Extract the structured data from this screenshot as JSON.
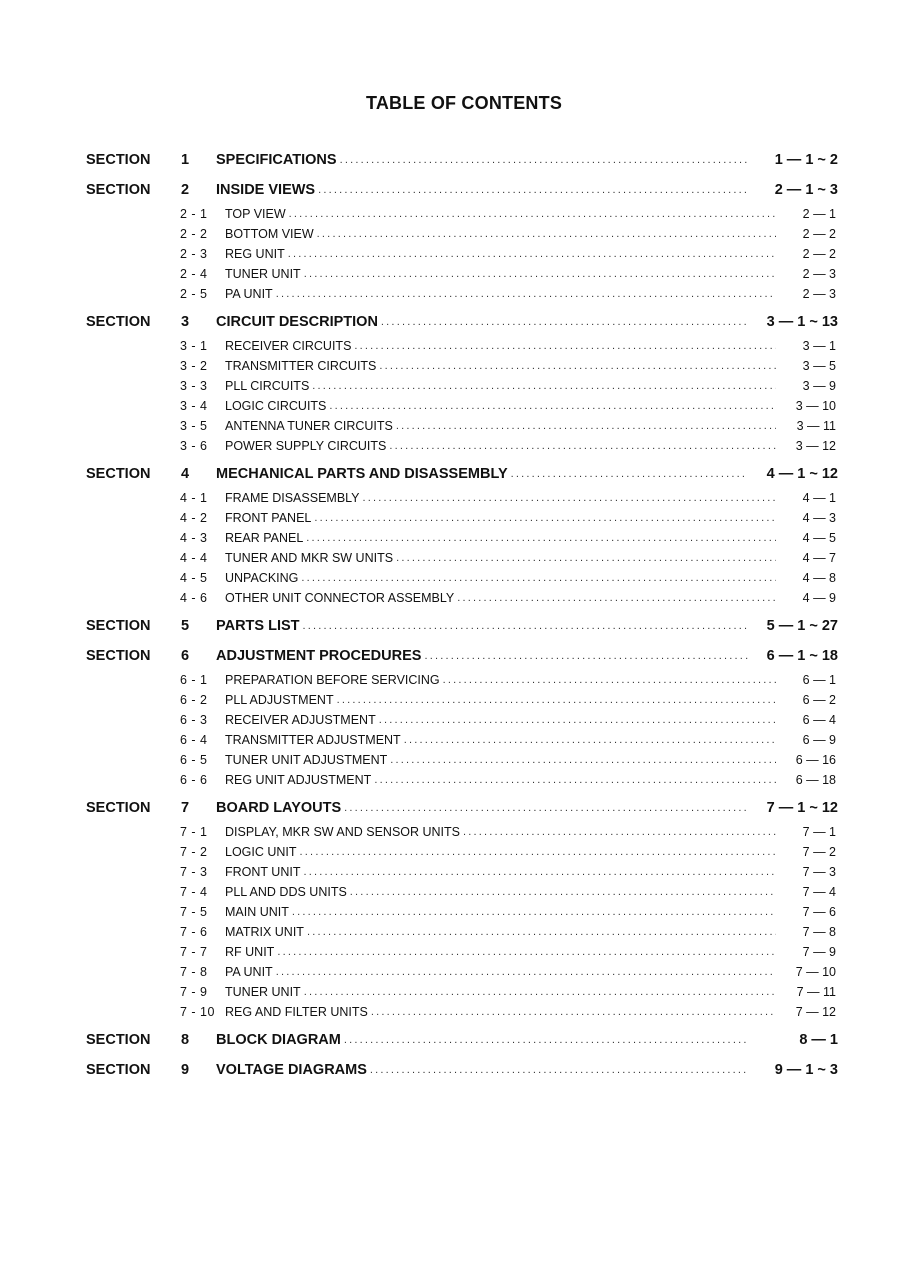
{
  "title": "TABLE OF CONTENTS",
  "section_label": "SECTION",
  "sections": [
    {
      "num": "1",
      "title": "SPECIFICATIONS",
      "pages": "1 — 1 ~ 2",
      "items": []
    },
    {
      "num": "2",
      "title": "INSIDE VIEWS",
      "pages": "2 — 1 ~ 3",
      "items": [
        {
          "num": "2 - 1",
          "title": "TOP VIEW",
          "page": "2 — 1"
        },
        {
          "num": "2 - 2",
          "title": "BOTTOM VIEW",
          "page": "2 — 2"
        },
        {
          "num": "2 - 3",
          "title": "REG UNIT",
          "page": "2 — 2"
        },
        {
          "num": "2 - 4",
          "title": "TUNER UNIT",
          "page": "2 — 3"
        },
        {
          "num": "2 - 5",
          "title": "PA UNIT",
          "page": "2 — 3"
        }
      ]
    },
    {
      "num": "3",
      "title": "CIRCUIT DESCRIPTION",
      "pages": "3 — 1 ~ 13",
      "items": [
        {
          "num": "3 - 1",
          "title": "RECEIVER CIRCUITS",
          "page": "3 — 1"
        },
        {
          "num": "3 - 2",
          "title": "TRANSMITTER CIRCUITS",
          "page": "3 — 5"
        },
        {
          "num": "3 - 3",
          "title": "PLL CIRCUITS",
          "page": "3 — 9"
        },
        {
          "num": "3 - 4",
          "title": "LOGIC CIRCUITS",
          "page": "3 — 10"
        },
        {
          "num": "3 - 5",
          "title": "ANTENNA TUNER CIRCUITS",
          "page": "3 — 11"
        },
        {
          "num": "3 - 6",
          "title": "POWER SUPPLY CIRCUITS",
          "page": "3 — 12"
        }
      ]
    },
    {
      "num": "4",
      "title": "MECHANICAL PARTS AND DISASSEMBLY",
      "pages": "4 — 1 ~ 12",
      "items": [
        {
          "num": "4 - 1",
          "title": "FRAME DISASSEMBLY",
          "page": "4 — 1"
        },
        {
          "num": "4 - 2",
          "title": "FRONT PANEL",
          "page": "4 — 3"
        },
        {
          "num": "4 - 3",
          "title": "REAR PANEL",
          "page": "4 — 5"
        },
        {
          "num": "4 - 4",
          "title": "TUNER AND MKR SW UNITS",
          "page": "4 — 7"
        },
        {
          "num": "4 - 5",
          "title": "UNPACKING",
          "page": "4 — 8"
        },
        {
          "num": "4 - 6",
          "title": "OTHER UNIT CONNECTOR ASSEMBLY",
          "page": "4 — 9"
        }
      ]
    },
    {
      "num": "5",
      "title": "PARTS LIST",
      "pages": "5 — 1 ~ 27",
      "items": []
    },
    {
      "num": "6",
      "title": "ADJUSTMENT PROCEDURES",
      "pages": "6 — 1 ~ 18",
      "items": [
        {
          "num": "6 - 1",
          "title": "PREPARATION BEFORE SERVICING",
          "page": "6 — 1"
        },
        {
          "num": "6 - 2",
          "title": "PLL ADJUSTMENT",
          "page": "6 — 2"
        },
        {
          "num": "6 - 3",
          "title": "RECEIVER ADJUSTMENT",
          "page": "6 — 4"
        },
        {
          "num": "6 - 4",
          "title": "TRANSMITTER ADJUSTMENT",
          "page": "6 — 9"
        },
        {
          "num": "6 - 5",
          "title": "TUNER UNIT ADJUSTMENT",
          "page": "6 — 16"
        },
        {
          "num": "6 - 6",
          "title": "REG UNIT ADJUSTMENT",
          "page": "6 — 18"
        }
      ]
    },
    {
      "num": "7",
      "title": "BOARD LAYOUTS",
      "pages": "7 — 1 ~ 12",
      "items": [
        {
          "num": "7 - 1",
          "title": "DISPLAY, MKR SW AND SENSOR UNITS",
          "page": "7 — 1"
        },
        {
          "num": "7 - 2",
          "title": "LOGIC UNIT",
          "page": "7 — 2"
        },
        {
          "num": "7 - 3",
          "title": "FRONT UNIT",
          "page": "7 — 3"
        },
        {
          "num": "7 - 4",
          "title": "PLL AND DDS UNITS",
          "page": "7 — 4"
        },
        {
          "num": "7 - 5",
          "title": "MAIN UNIT",
          "page": "7 — 6"
        },
        {
          "num": "7 - 6",
          "title": "MATRIX UNIT",
          "page": "7 — 8"
        },
        {
          "num": "7 - 7",
          "title": "RF UNIT",
          "page": "7 — 9"
        },
        {
          "num": "7 - 8",
          "title": "PA UNIT",
          "page": "7 — 10"
        },
        {
          "num": "7 - 9",
          "title": "TUNER UNIT",
          "page": "7 — 11"
        },
        {
          "num": "7 - 10",
          "title": "REG AND FILTER UNITS",
          "page": "7 — 12"
        }
      ]
    },
    {
      "num": "8",
      "title": "BLOCK DIAGRAM",
      "pages": "8 — 1",
      "items": []
    },
    {
      "num": "9",
      "title": "VOLTAGE DIAGRAMS",
      "pages": "9 — 1 ~ 3",
      "items": []
    }
  ]
}
